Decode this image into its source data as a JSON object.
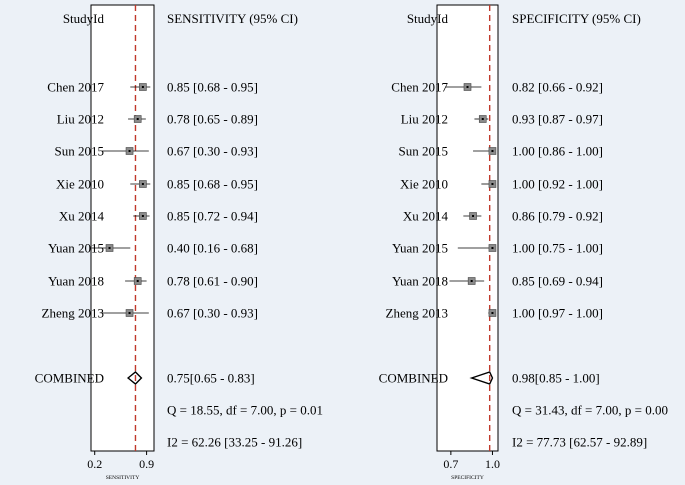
{
  "chart_data": [
    {
      "type": "forest",
      "column_headers": {
        "study": "StudyId",
        "estimate": "SENSITIVITY (95% CI)"
      },
      "axis": {
        "ticks": [
          0.2,
          0.9
        ],
        "tick_labels": [
          "0.2",
          "0.9"
        ],
        "xlabel": "SENSITIVITY",
        "xlim": [
          0.15,
          1.0
        ]
      },
      "reference_line": 0.75,
      "studies": [
        {
          "name": "Chen 2017",
          "est": 0.85,
          "lo": 0.68,
          "hi": 0.95,
          "label": "0.85 [0.68 - 0.95]"
        },
        {
          "name": "Liu 2012",
          "est": 0.78,
          "lo": 0.65,
          "hi": 0.89,
          "label": "0.78 [0.65 - 0.89]"
        },
        {
          "name": "Sun 2015",
          "est": 0.67,
          "lo": 0.3,
          "hi": 0.93,
          "label": "0.67 [0.30 - 0.93]"
        },
        {
          "name": "Xie 2010",
          "est": 0.85,
          "lo": 0.68,
          "hi": 0.95,
          "label": "0.85 [0.68 - 0.95]"
        },
        {
          "name": "Xu 2014",
          "est": 0.85,
          "lo": 0.72,
          "hi": 0.94,
          "label": "0.85 [0.72 - 0.94]"
        },
        {
          "name": "Yuan 2015",
          "est": 0.4,
          "lo": 0.16,
          "hi": 0.68,
          "label": "0.40 [0.16 - 0.68]"
        },
        {
          "name": "Yuan 2018",
          "est": 0.78,
          "lo": 0.61,
          "hi": 0.9,
          "label": "0.78 [0.61 - 0.90]"
        },
        {
          "name": "Zheng 2013",
          "est": 0.67,
          "lo": 0.3,
          "hi": 0.93,
          "label": "0.67 [0.30 - 0.93]"
        }
      ],
      "combined": {
        "name": "COMBINED",
        "est": 0.75,
        "lo": 0.65,
        "hi": 0.83,
        "label": "0.75[0.65 - 0.83]"
      },
      "stats": [
        "Q = 18.55, df = 7.00, p =  0.01",
        "I2 = 62.26 [33.25 - 91.26]"
      ]
    },
    {
      "type": "forest",
      "column_headers": {
        "study": "StudyId",
        "estimate": "SPECIFICITY (95% CI)"
      },
      "axis": {
        "ticks": [
          0.7,
          1.0
        ],
        "tick_labels": [
          "0.7",
          "1.0"
        ],
        "xlabel": "SPECIFICITY",
        "xlim": [
          0.6,
          1.04
        ]
      },
      "reference_line": 0.98,
      "studies": [
        {
          "name": "Chen 2017",
          "est": 0.82,
          "lo": 0.66,
          "hi": 0.92,
          "label": "0.82 [0.66 - 0.92]"
        },
        {
          "name": "Liu 2012",
          "est": 0.93,
          "lo": 0.87,
          "hi": 0.97,
          "label": "0.93 [0.87 - 0.97]"
        },
        {
          "name": "Sun 2015",
          "est": 1.0,
          "lo": 0.86,
          "hi": 1.0,
          "label": "1.00 [0.86 - 1.00]"
        },
        {
          "name": "Xie 2010",
          "est": 1.0,
          "lo": 0.92,
          "hi": 1.0,
          "label": "1.00 [0.92 - 1.00]"
        },
        {
          "name": "Xu 2014",
          "est": 0.86,
          "lo": 0.79,
          "hi": 0.92,
          "label": "0.86 [0.79 - 0.92]"
        },
        {
          "name": "Yuan 2015",
          "est": 1.0,
          "lo": 0.75,
          "hi": 1.0,
          "label": "1.00 [0.75 - 1.00]"
        },
        {
          "name": "Yuan 2018",
          "est": 0.85,
          "lo": 0.69,
          "hi": 0.94,
          "label": "0.85 [0.69 - 0.94]"
        },
        {
          "name": "Zheng 2013",
          "est": 1.0,
          "lo": 0.97,
          "hi": 1.0,
          "label": "1.00 [0.97 - 1.00]"
        }
      ],
      "combined": {
        "name": "COMBINED",
        "est": 0.98,
        "lo": 0.85,
        "hi": 1.0,
        "label": "0.98[0.85 - 1.00]"
      },
      "stats": [
        "Q = 31.43, df = 7.00, p =  0.00",
        "I2 = 77.73 [62.57 - 92.89]"
      ]
    }
  ]
}
